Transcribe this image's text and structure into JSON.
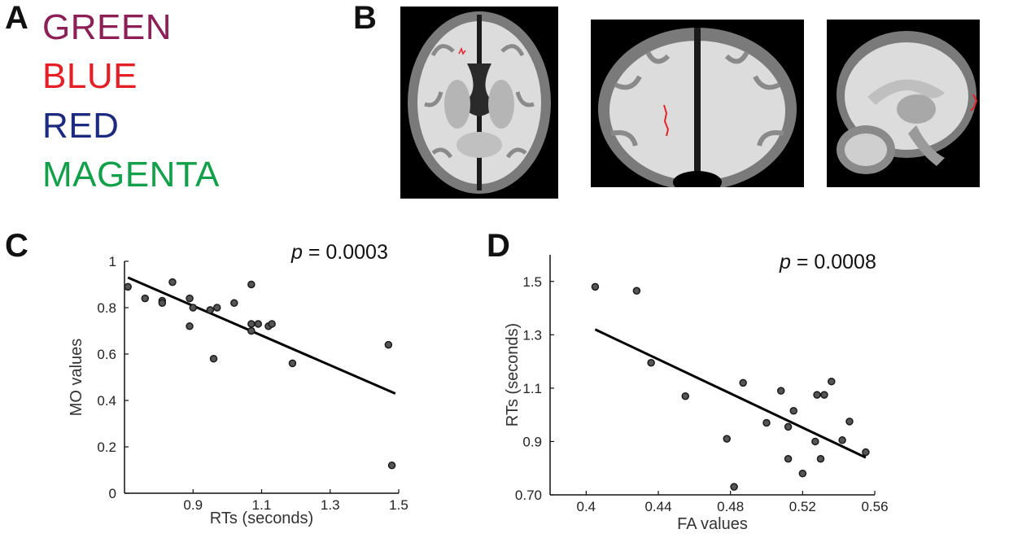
{
  "panels": {
    "a": {
      "letter": "A",
      "words": [
        {
          "text": "GREEN",
          "color": "#8b1f56"
        },
        {
          "text": "BLUE",
          "color": "#e41f26"
        },
        {
          "text": "RED",
          "color": "#1c2a80"
        },
        {
          "text": "MAGENTA",
          "color": "#13a04a"
        }
      ]
    },
    "b": {
      "letter": "B"
    },
    "c": {
      "letter": "C"
    },
    "d": {
      "letter": "D"
    }
  },
  "colors": {
    "brain_bg": "#000000",
    "white_matter": "#e3e3e3",
    "gray_matter": "#7a7a7a",
    "highlight": "#e8202a",
    "point": "#1a1a1a",
    "axis": "#111111"
  },
  "chart_data": [
    {
      "id": "c",
      "type": "scatter",
      "xlabel": "RTs (seconds)",
      "ylabel": "MO values",
      "annotation_italic": "p",
      "annotation_rest": " = 0.0003",
      "xlim": [
        0.7,
        1.5
      ],
      "ylim": [
        0,
        1
      ],
      "xticks": [
        0.9,
        1.1,
        1.3,
        1.5
      ],
      "xtick_labels": [
        "0.9",
        "1.1",
        "1.3",
        "1.5"
      ],
      "yticks": [
        0,
        0.2,
        0.4,
        0.6,
        0.8,
        1
      ],
      "ytick_labels": [
        "0",
        "0.2",
        "0.4",
        "0.6",
        "0.8",
        "1"
      ],
      "trend": [
        [
          0.71,
          0.93
        ],
        [
          1.49,
          0.43
        ]
      ],
      "points": [
        [
          0.71,
          0.89
        ],
        [
          0.76,
          0.84
        ],
        [
          0.81,
          0.83
        ],
        [
          0.81,
          0.82
        ],
        [
          0.84,
          0.91
        ],
        [
          0.89,
          0.84
        ],
        [
          0.9,
          0.8
        ],
        [
          0.89,
          0.72
        ],
        [
          0.95,
          0.79
        ],
        [
          0.97,
          0.8
        ],
        [
          0.96,
          0.58
        ],
        [
          1.02,
          0.82
        ],
        [
          1.07,
          0.9
        ],
        [
          1.07,
          0.73
        ],
        [
          1.07,
          0.7
        ],
        [
          1.09,
          0.73
        ],
        [
          1.12,
          0.72
        ],
        [
          1.13,
          0.73
        ],
        [
          1.19,
          0.56
        ],
        [
          1.47,
          0.64
        ],
        [
          1.48,
          0.12
        ]
      ]
    },
    {
      "id": "d",
      "type": "scatter",
      "xlabel": "FA values",
      "ylabel": "RTs (seconds)",
      "annotation_italic": "p",
      "annotation_rest": " = 0.0008",
      "xlim": [
        0.38,
        0.56
      ],
      "ylim": [
        0.7,
        1.6
      ],
      "xticks": [
        0.4,
        0.44,
        0.48,
        0.52,
        0.56
      ],
      "xtick_labels": [
        "0.4",
        "0.44",
        "0.48",
        "0.52",
        "0.56"
      ],
      "yticks": [
        0.7,
        0.9,
        1.1,
        1.3,
        1.5
      ],
      "ytick_labels": [
        "0.70",
        "0.9",
        "1.1",
        "1.3",
        "1.5"
      ],
      "trend": [
        [
          0.405,
          1.32
        ],
        [
          0.555,
          0.84
        ]
      ],
      "points": [
        [
          0.405,
          1.48
        ],
        [
          0.428,
          1.465
        ],
        [
          0.436,
          1.195
        ],
        [
          0.455,
          1.07
        ],
        [
          0.478,
          0.91
        ],
        [
          0.482,
          0.73
        ],
        [
          0.487,
          1.12
        ],
        [
          0.5,
          0.97
        ],
        [
          0.508,
          1.09
        ],
        [
          0.512,
          0.955
        ],
        [
          0.512,
          0.835
        ],
        [
          0.515,
          1.015
        ],
        [
          0.52,
          0.78
        ],
        [
          0.527,
          0.9
        ],
        [
          0.528,
          1.075
        ],
        [
          0.53,
          0.835
        ],
        [
          0.532,
          1.075
        ],
        [
          0.536,
          1.125
        ],
        [
          0.542,
          0.905
        ],
        [
          0.546,
          0.975
        ],
        [
          0.555,
          0.86
        ]
      ]
    }
  ]
}
